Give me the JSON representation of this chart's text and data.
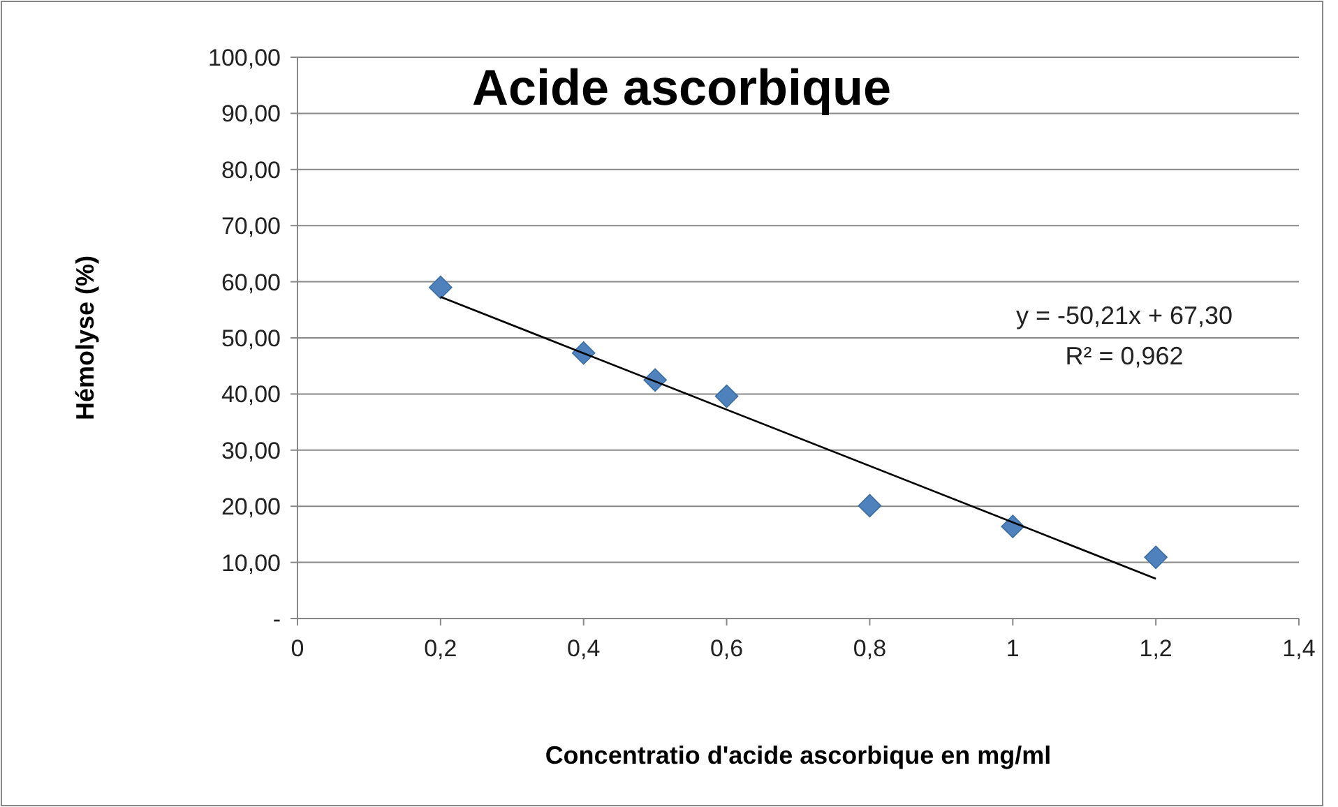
{
  "chart_data": {
    "type": "scatter",
    "title": "Acide ascorbique",
    "xlabel": "Concentratio d'acide ascorbique en mg/ml",
    "ylabel": "Hémolyse (%)",
    "x": [
      0.2,
      0.4,
      0.5,
      0.6,
      0.8,
      1.0,
      1.2
    ],
    "series": [
      {
        "color": "#4f81bd",
        "marker": "diamond",
        "values": [
          59.0,
          47.3,
          42.5,
          39.6,
          20.1,
          16.4,
          10.9
        ]
      },
      {
        "type": "line",
        "color": "#000000",
        "marker": "none",
        "x": [
          0.2,
          1.2
        ],
        "values": [
          57.3,
          7.1
        ]
      }
    ],
    "xlim": [
      0,
      1.4
    ],
    "xticks": [
      0,
      {
        "value": 0.2,
        "label": "0,2"
      },
      {
        "value": 0.4,
        "label": "0,4"
      },
      {
        "value": 0.6,
        "label": "0,6"
      },
      {
        "value": 0.8,
        "label": "0,8"
      },
      1,
      {
        "value": 1.2,
        "label": "1,2"
      },
      {
        "value": 1.4,
        "label": "1,4"
      }
    ],
    "ylim": [
      0,
      100
    ],
    "yticks": [
      {
        "value": 0,
        "label": "-"
      },
      {
        "value": 10,
        "label": "10,00"
      },
      {
        "value": 20,
        "label": "20,00"
      },
      {
        "value": 30,
        "label": "30,00"
      },
      {
        "value": 40,
        "label": "40,00"
      },
      {
        "value": 50,
        "label": "50,00"
      },
      {
        "value": 60,
        "label": "60,00"
      },
      {
        "value": 70,
        "label": "70,00"
      },
      {
        "value": 80,
        "label": "80,00"
      },
      {
        "value": 90,
        "label": "90,00"
      },
      {
        "value": 100,
        "label": "100,00"
      }
    ],
    "grid": "y",
    "annotations": [
      "y = -50,21x + 67,30",
      "R² = 0,962"
    ]
  }
}
